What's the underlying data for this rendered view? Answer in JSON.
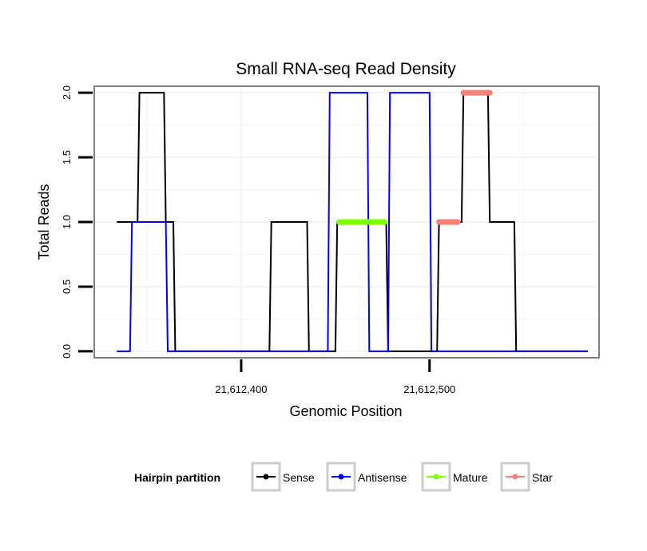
{
  "chart_data": {
    "type": "line",
    "title": "Small RNA-seq Read Density",
    "xlabel": "Genomic Position",
    "ylabel": "Total Reads",
    "xlim": [
      21612322,
      21612590
    ],
    "ylim": [
      -0.05,
      2.05
    ],
    "x_ticks": [
      21612400,
      21612500
    ],
    "x_tick_labels": [
      "21,612,400",
      "21,612,500"
    ],
    "y_ticks": [
      0,
      0.5,
      1,
      1.5,
      2
    ],
    "y_tick_labels": [
      "0.0",
      "0.5",
      "1.0",
      "1.5",
      "2.0"
    ],
    "grid": true,
    "legend_position": "bottom",
    "legend_title": "Hairpin partition",
    "series": [
      {
        "name": "Sense",
        "color": "#000000",
        "kind": "line",
        "x": [
          21612334,
          21612345,
          21612346,
          21612359,
          21612360,
          21612364,
          21612365,
          21612415,
          21612416,
          21612435,
          21612436,
          21612450,
          21612451,
          21612477,
          21612478,
          21612504,
          21612505,
          21612517,
          21612518,
          21612531,
          21612532,
          21612545,
          21612546,
          21612584
        ],
        "y": [
          1,
          1,
          2,
          2,
          1,
          1,
          0,
          0,
          1,
          1,
          0,
          0,
          1,
          1,
          0,
          0,
          1,
          1,
          2,
          2,
          1,
          1,
          0,
          0
        ]
      },
      {
        "name": "Antisense",
        "color": "#0000ff",
        "kind": "line",
        "x": [
          21612334,
          21612341,
          21612342,
          21612360,
          21612361,
          21612446,
          21612447,
          21612467,
          21612468,
          21612475,
          21612476,
          21612478,
          21612479,
          21612500,
          21612501,
          21612584
        ],
        "y": [
          0,
          0,
          1,
          1,
          0,
          0,
          2,
          2,
          0,
          0,
          0,
          0,
          2,
          2,
          0,
          0
        ]
      },
      {
        "name": "Mature",
        "color": "#7fff00",
        "kind": "segment",
        "x": [
          21612452,
          21612476
        ],
        "y": [
          1,
          1
        ]
      },
      {
        "name": "Star",
        "color": "#fa8072",
        "kind": "segment",
        "segments": [
          {
            "x": [
              21612505,
              21612515
            ],
            "y": [
              1,
              1
            ]
          },
          {
            "x": [
              21612518,
              21612532
            ],
            "y": [
              2,
              2
            ]
          }
        ]
      }
    ]
  }
}
